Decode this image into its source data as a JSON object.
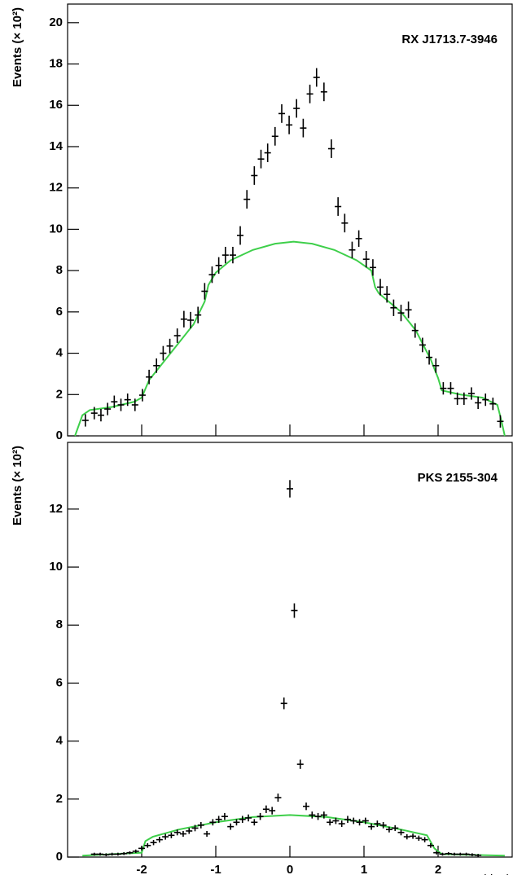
{
  "chart_data": [
    {
      "type": "scatter",
      "annotation": "RX J1713.7-3946",
      "ylabel": "Events (× 10²)",
      "color": "#000000",
      "x": [
        -2.76,
        -2.64,
        -2.55,
        -2.46,
        -2.37,
        -2.28,
        -2.19,
        -2.09,
        -1.99,
        -1.9,
        -1.8,
        -1.71,
        -1.62,
        -1.52,
        -1.43,
        -1.34,
        -1.24,
        -1.15,
        -1.05,
        -0.96,
        -0.87,
        -0.77,
        -0.67,
        -0.58,
        -0.48,
        -0.39,
        -0.3,
        -0.2,
        -0.11,
        -0.01,
        0.09,
        0.18,
        0.27,
        0.36,
        0.46,
        0.56,
        0.65,
        0.74,
        0.84,
        0.93,
        1.03,
        1.12,
        1.22,
        1.31,
        1.4,
        1.5,
        1.6,
        1.69,
        1.79,
        1.88,
        1.97,
        2.07,
        2.17,
        2.26,
        2.35,
        2.45,
        2.54,
        2.64,
        2.74,
        2.84
      ],
      "values": [
        0.75,
        1.1,
        1.0,
        1.3,
        1.65,
        1.5,
        1.75,
        1.5,
        1.97,
        2.85,
        3.4,
        4.0,
        4.35,
        4.85,
        5.65,
        5.6,
        5.85,
        7.0,
        7.8,
        8.25,
        8.75,
        8.75,
        9.7,
        11.45,
        12.6,
        13.4,
        13.7,
        14.5,
        15.6,
        15.05,
        15.85,
        14.9,
        16.55,
        17.35,
        16.65,
        13.9,
        11.1,
        10.3,
        9.0,
        9.55,
        8.55,
        8.15,
        7.2,
        6.85,
        6.2,
        5.95,
        6.1,
        5.1,
        4.4,
        3.8,
        3.4,
        2.3,
        2.3,
        1.8,
        1.8,
        2.05,
        1.6,
        1.75,
        1.55,
        0.7
      ],
      "errors": [
        0.3,
        0.3,
        0.3,
        0.3,
        0.3,
        0.3,
        0.3,
        0.3,
        0.3,
        0.35,
        0.35,
        0.35,
        0.35,
        0.35,
        0.4,
        0.4,
        0.4,
        0.4,
        0.4,
        0.4,
        0.4,
        0.4,
        0.45,
        0.45,
        0.45,
        0.45,
        0.45,
        0.45,
        0.45,
        0.45,
        0.45,
        0.45,
        0.45,
        0.45,
        0.45,
        0.45,
        0.45,
        0.45,
        0.4,
        0.4,
        0.4,
        0.4,
        0.4,
        0.4,
        0.4,
        0.4,
        0.4,
        0.35,
        0.35,
        0.35,
        0.35,
        0.3,
        0.3,
        0.3,
        0.3,
        0.3,
        0.3,
        0.3,
        0.3,
        0.3
      ],
      "curve": {
        "color": "#3ecf4a",
        "x": [
          -2.9,
          -2.8,
          -2.7,
          -2.4,
          -2.1,
          -2.0,
          -1.9,
          -1.7,
          -1.5,
          -1.3,
          -1.15,
          -1.1,
          -1.0,
          -0.8,
          -0.5,
          -0.2,
          0.05,
          0.3,
          0.6,
          0.9,
          1.1,
          1.15,
          1.2,
          1.5,
          1.7,
          1.9,
          2.0,
          2.05,
          2.3,
          2.6,
          2.8,
          2.85,
          2.9
        ],
        "values": [
          0,
          1.0,
          1.25,
          1.4,
          1.65,
          1.85,
          2.7,
          3.6,
          4.5,
          5.4,
          6.5,
          7.3,
          7.9,
          8.5,
          9.0,
          9.3,
          9.4,
          9.3,
          9.0,
          8.5,
          8.0,
          7.2,
          6.9,
          6.0,
          5.1,
          3.7,
          2.8,
          2.2,
          2.0,
          1.85,
          1.5,
          0.8,
          0
        ]
      },
      "xlim": [
        -3,
        3
      ],
      "ylim": [
        0,
        20.9
      ],
      "xticks": [
        -2,
        -1,
        0,
        1,
        2
      ],
      "yticks": [
        0,
        2,
        4,
        6,
        8,
        10,
        12,
        14,
        16,
        18,
        20
      ]
    },
    {
      "type": "scatter",
      "annotation": "PKS 2155-304",
      "ylabel": "Events (× 10²)",
      "xlabel": "Δ RA (deg)",
      "color": "#000000",
      "x": [
        -2.64,
        -2.56,
        -2.48,
        -2.4,
        -2.32,
        -2.24,
        -2.16,
        -2.08,
        -2.0,
        -1.92,
        -1.84,
        -1.76,
        -1.68,
        -1.6,
        -1.52,
        -1.44,
        -1.36,
        -1.28,
        -1.2,
        -1.12,
        -1.04,
        -0.96,
        -0.88,
        -0.8,
        -0.72,
        -0.64,
        -0.56,
        -0.48,
        -0.4,
        -0.32,
        -0.24,
        -0.16,
        -0.08,
        0.0,
        0.06,
        0.14,
        0.22,
        0.3,
        0.38,
        0.46,
        0.54,
        0.62,
        0.7,
        0.78,
        0.86,
        0.94,
        1.02,
        1.1,
        1.18,
        1.26,
        1.34,
        1.42,
        1.5,
        1.58,
        1.66,
        1.74,
        1.82,
        1.9,
        1.98,
        2.06,
        2.14,
        2.22,
        2.3,
        2.38,
        2.46,
        2.54
      ],
      "values": [
        0.1,
        0.1,
        0.08,
        0.1,
        0.1,
        0.12,
        0.15,
        0.2,
        0.3,
        0.4,
        0.5,
        0.6,
        0.7,
        0.75,
        0.85,
        0.8,
        0.9,
        1.0,
        1.1,
        0.8,
        1.2,
        1.3,
        1.4,
        1.05,
        1.2,
        1.3,
        1.35,
        1.2,
        1.4,
        1.65,
        1.6,
        2.05,
        5.3,
        12.7,
        8.5,
        3.2,
        1.75,
        1.45,
        1.4,
        1.45,
        1.2,
        1.25,
        1.15,
        1.3,
        1.25,
        1.2,
        1.25,
        1.05,
        1.15,
        1.1,
        0.95,
        1.0,
        0.85,
        0.7,
        0.72,
        0.65,
        0.6,
        0.4,
        0.15,
        0.1,
        0.12,
        0.1,
        0.1,
        0.1,
        0.08,
        0.06
      ],
      "errors": [
        0.05,
        0.05,
        0.05,
        0.05,
        0.05,
        0.05,
        0.05,
        0.06,
        0.07,
        0.08,
        0.09,
        0.1,
        0.1,
        0.1,
        0.1,
        0.1,
        0.1,
        0.11,
        0.11,
        0.1,
        0.11,
        0.12,
        0.12,
        0.11,
        0.11,
        0.12,
        0.12,
        0.11,
        0.12,
        0.13,
        0.13,
        0.14,
        0.2,
        0.3,
        0.25,
        0.16,
        0.13,
        0.12,
        0.12,
        0.12,
        0.11,
        0.11,
        0.11,
        0.12,
        0.11,
        0.11,
        0.11,
        0.11,
        0.11,
        0.11,
        0.1,
        0.1,
        0.1,
        0.09,
        0.09,
        0.09,
        0.09,
        0.08,
        0.06,
        0.05,
        0.05,
        0.05,
        0.05,
        0.05,
        0.05,
        0.05
      ],
      "curve": {
        "color": "#3ecf4a",
        "x": [
          -2.8,
          -2.0,
          -1.95,
          -1.85,
          -1.5,
          -1.0,
          -0.5,
          0.0,
          0.5,
          1.0,
          1.5,
          1.85,
          1.95,
          2.05,
          2.9
        ],
        "values": [
          0.05,
          0.15,
          0.55,
          0.7,
          0.95,
          1.2,
          1.38,
          1.45,
          1.38,
          1.2,
          0.95,
          0.75,
          0.3,
          0.1,
          0.05
        ]
      },
      "xlim": [
        -3,
        3
      ],
      "ylim": [
        0,
        14.3
      ],
      "xticks": [
        -2,
        -1,
        0,
        1,
        2
      ],
      "yticks": [
        0,
        2,
        4,
        6,
        8,
        10,
        12
      ]
    }
  ]
}
